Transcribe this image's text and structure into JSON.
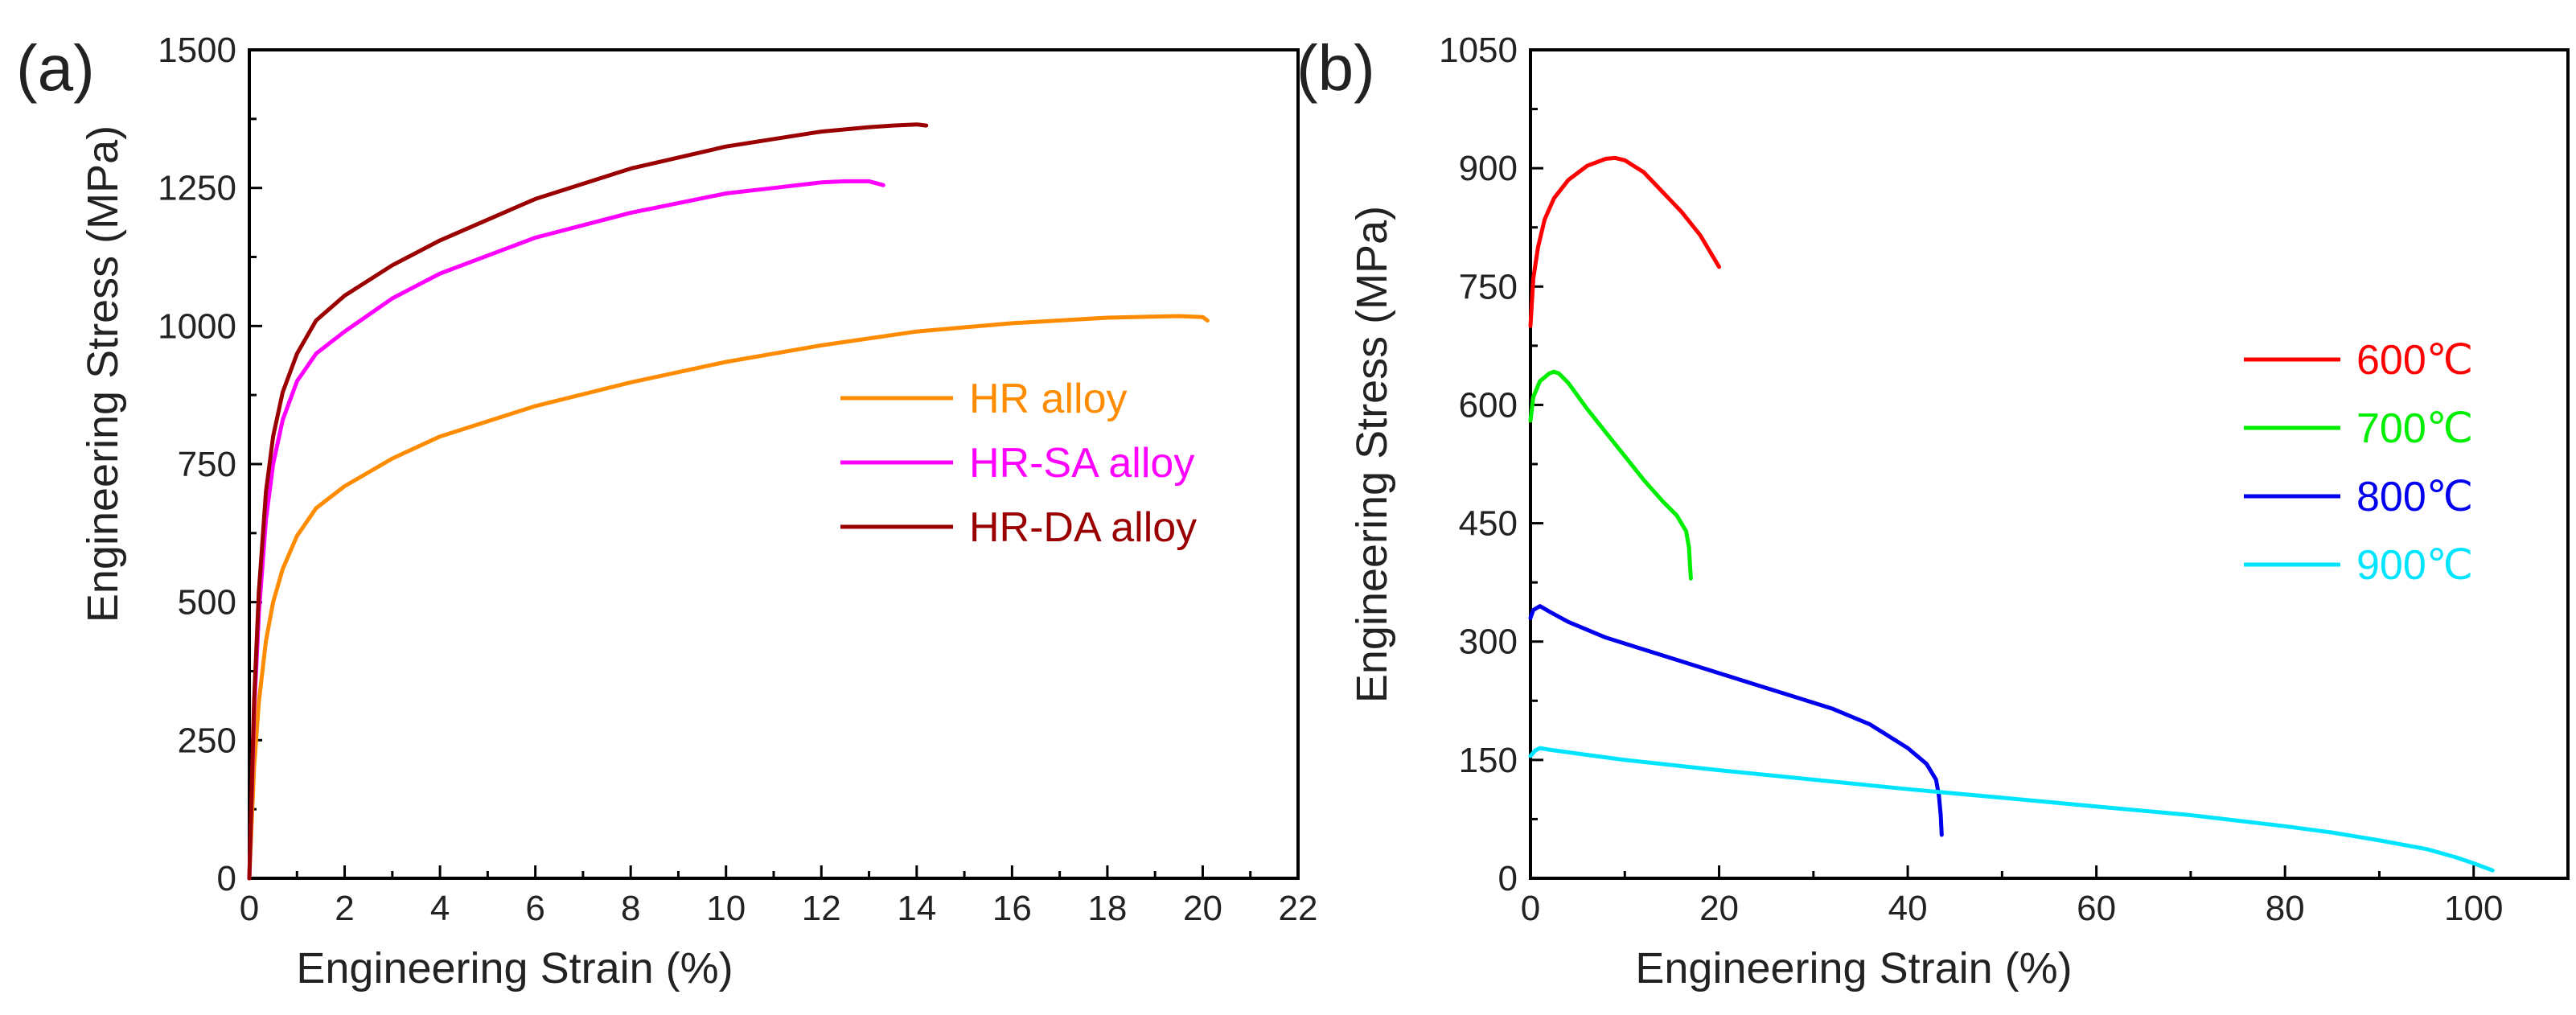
{
  "chart_data": [
    {
      "type": "line",
      "panel_label": "(a)",
      "xlabel": "Engineering Strain (%)",
      "ylabel": "Engineering Stress (MPa)",
      "xlim": [
        0,
        22
      ],
      "ylim": [
        0,
        1500
      ],
      "xticks": [
        0,
        2,
        4,
        6,
        8,
        10,
        12,
        14,
        16,
        18,
        20,
        22
      ],
      "yticks": [
        0,
        250,
        500,
        750,
        1000,
        1250,
        1500
      ],
      "legend_position": "center-right",
      "series": [
        {
          "name": "HR alloy",
          "color": "#ff8c00",
          "x": [
            0,
            0.1,
            0.2,
            0.35,
            0.5,
            0.7,
            1.0,
            1.4,
            2.0,
            3,
            4,
            6,
            8,
            10,
            12,
            14,
            16,
            18,
            19.5,
            20.0,
            20.1
          ],
          "y": [
            0,
            200,
            320,
            430,
            500,
            560,
            620,
            670,
            710,
            760,
            800,
            855,
            898,
            935,
            965,
            990,
            1005,
            1015,
            1018,
            1016,
            1010
          ]
        },
        {
          "name": "HR-SA alloy",
          "color": "#ff00ff",
          "x": [
            0,
            0.1,
            0.2,
            0.35,
            0.5,
            0.7,
            1.0,
            1.4,
            2.0,
            3,
            4,
            6,
            8,
            10,
            11,
            12,
            12.5,
            13.0,
            13.3
          ],
          "y": [
            0,
            300,
            480,
            650,
            750,
            830,
            900,
            950,
            990,
            1050,
            1095,
            1160,
            1205,
            1240,
            1250,
            1260,
            1262,
            1262,
            1255
          ]
        },
        {
          "name": "HR-DA alloy",
          "color": "#9b0000",
          "x": [
            0,
            0.1,
            0.2,
            0.35,
            0.5,
            0.7,
            1.0,
            1.4,
            2.0,
            3,
            4,
            6,
            8,
            10,
            12,
            13,
            13.5,
            14.0,
            14.2
          ],
          "y": [
            0,
            320,
            520,
            700,
            800,
            880,
            950,
            1010,
            1055,
            1110,
            1155,
            1230,
            1285,
            1325,
            1352,
            1360,
            1363,
            1365,
            1363
          ]
        }
      ]
    },
    {
      "type": "line",
      "panel_label": "(b)",
      "xlabel": "Engineering Strain (%)",
      "ylabel": "Engineering Stress (MPa)",
      "xlim": [
        0,
        110
      ],
      "ylim": [
        0,
        1050
      ],
      "xticks": [
        0,
        20,
        40,
        60,
        80,
        100
      ],
      "yticks": [
        0,
        150,
        300,
        450,
        600,
        750,
        900,
        1050
      ],
      "legend_position": "upper-right",
      "series": [
        {
          "name": "600℃",
          "color": "#ff0000",
          "x": [
            0,
            0.3,
            0.8,
            1.5,
            2.5,
            4,
            6,
            8,
            9,
            10,
            12,
            14,
            16,
            18,
            20
          ],
          "y": [
            700,
            760,
            800,
            835,
            862,
            885,
            903,
            912,
            913,
            910,
            895,
            870,
            845,
            815,
            775
          ]
        },
        {
          "name": "700℃",
          "color": "#00ee00",
          "x": [
            0,
            0.3,
            1,
            2,
            2.5,
            3,
            4,
            6,
            8,
            10,
            12,
            14,
            15.5,
            16.5,
            16.8,
            16.9,
            17.0
          ],
          "y": [
            580,
            610,
            630,
            640,
            642,
            640,
            628,
            595,
            565,
            535,
            505,
            478,
            460,
            440,
            420,
            400,
            380
          ]
        },
        {
          "name": "800℃",
          "color": "#0000ee",
          "x": [
            0,
            0.3,
            1,
            2,
            4,
            8,
            12,
            16,
            20,
            24,
            28,
            32,
            36,
            38,
            40,
            42,
            43,
            43.3,
            43.5,
            43.6
          ],
          "y": [
            330,
            340,
            345,
            338,
            325,
            305,
            290,
            275,
            260,
            245,
            230,
            215,
            195,
            180,
            165,
            145,
            125,
            105,
            80,
            55
          ]
        },
        {
          "name": "900℃",
          "color": "#00e5ff",
          "x": [
            0,
            0.5,
            1,
            2,
            5,
            10,
            20,
            30,
            40,
            50,
            60,
            70,
            80,
            85,
            90,
            95,
            98,
            100,
            102
          ],
          "y": [
            155,
            162,
            165,
            163,
            158,
            150,
            137,
            125,
            113,
            102,
            91,
            80,
            66,
            58,
            48,
            37,
            27,
            19,
            10
          ]
        }
      ]
    }
  ]
}
